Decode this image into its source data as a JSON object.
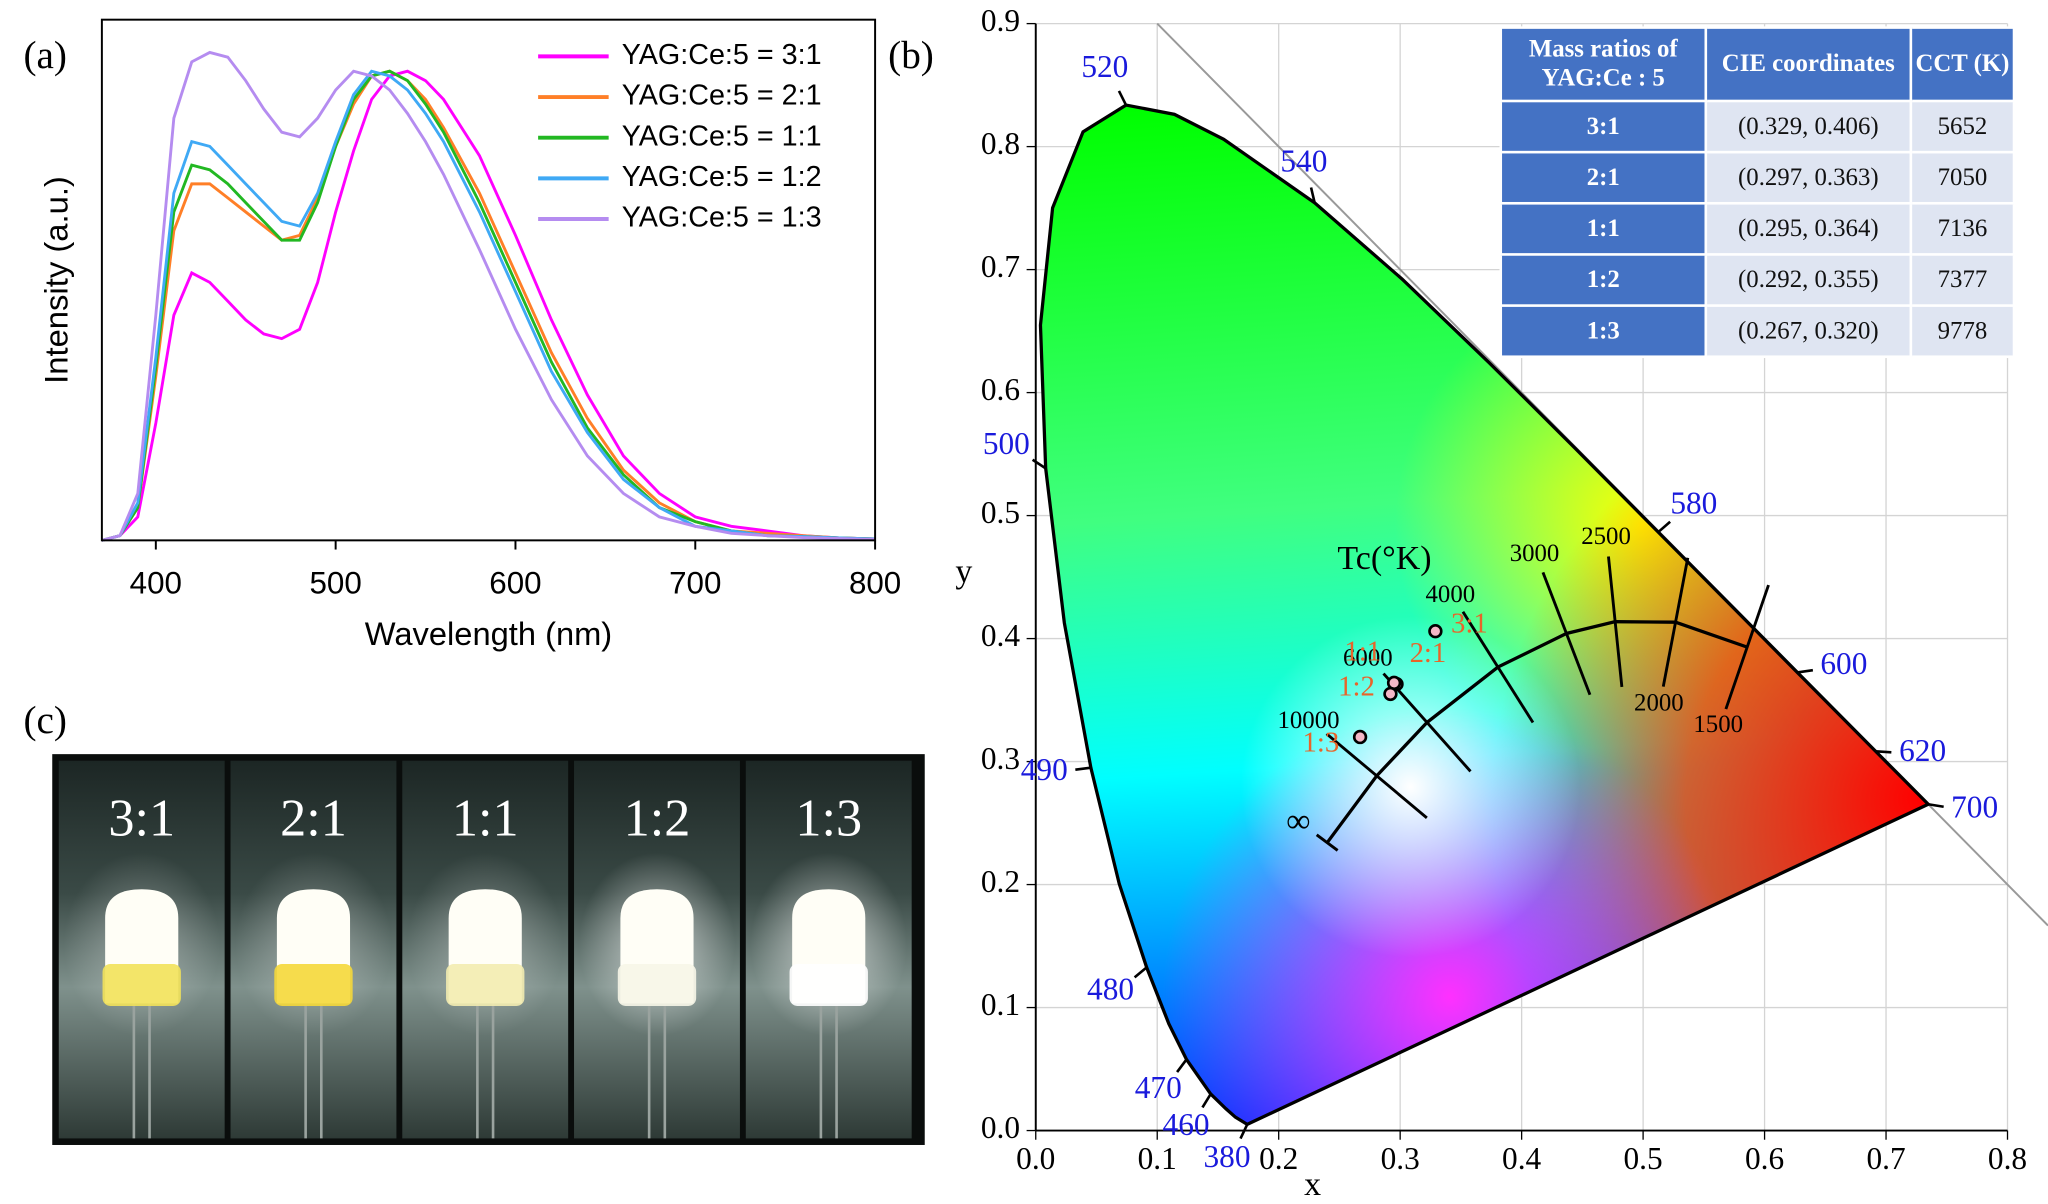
{
  "panel_labels": [
    "(a)",
    "(b)",
    "(c)"
  ],
  "chart_data": [
    {
      "type": "line",
      "xlabel": "Wavelength (nm)",
      "ylabel": "Intensity (a.u.)",
      "xlim": [
        370,
        800
      ],
      "xticks": [
        400,
        500,
        600,
        700,
        800
      ],
      "ylim": [
        0,
        1.11
      ],
      "legend": "upper right",
      "x": [
        370,
        380,
        390,
        400,
        410,
        420,
        430,
        440,
        450,
        460,
        470,
        480,
        490,
        500,
        510,
        520,
        530,
        540,
        550,
        560,
        580,
        600,
        620,
        640,
        660,
        680,
        700,
        720,
        740,
        760,
        780,
        800
      ],
      "series": [
        {
          "name": "YAG:Ce:5 = 3:1",
          "color": "#ff00ff",
          "values": [
            0,
            0.01,
            0.05,
            0.25,
            0.48,
            0.57,
            0.55,
            0.51,
            0.47,
            0.44,
            0.43,
            0.45,
            0.55,
            0.7,
            0.83,
            0.94,
            0.99,
            1.0,
            0.98,
            0.94,
            0.82,
            0.65,
            0.47,
            0.31,
            0.18,
            0.1,
            0.05,
            0.03,
            0.02,
            0.01,
            0.005,
            0.003
          ]
        },
        {
          "name": "YAG:Ce:5 = 2:1",
          "color": "#ff7f27",
          "values": [
            0,
            0.01,
            0.07,
            0.35,
            0.66,
            0.76,
            0.76,
            0.73,
            0.7,
            0.67,
            0.64,
            0.65,
            0.73,
            0.84,
            0.93,
            0.99,
            1.0,
            0.98,
            0.94,
            0.88,
            0.74,
            0.57,
            0.4,
            0.26,
            0.15,
            0.08,
            0.04,
            0.02,
            0.015,
            0.01,
            0.005,
            0.003
          ]
        },
        {
          "name": "YAG:Ce:5 = 1:1",
          "color": "#22b822",
          "values": [
            0,
            0.01,
            0.07,
            0.37,
            0.7,
            0.8,
            0.79,
            0.76,
            0.72,
            0.68,
            0.64,
            0.64,
            0.72,
            0.84,
            0.94,
            0.99,
            1.0,
            0.98,
            0.93,
            0.87,
            0.72,
            0.55,
            0.38,
            0.24,
            0.14,
            0.07,
            0.04,
            0.02,
            0.01,
            0.008,
            0.005,
            0.003
          ]
        },
        {
          "name": "YAG:Ce:5 = 1:2",
          "color": "#3fa9f5",
          "values": [
            0,
            0.01,
            0.08,
            0.39,
            0.74,
            0.85,
            0.84,
            0.8,
            0.76,
            0.72,
            0.68,
            0.67,
            0.74,
            0.85,
            0.95,
            1.0,
            0.99,
            0.96,
            0.91,
            0.85,
            0.7,
            0.53,
            0.36,
            0.23,
            0.13,
            0.07,
            0.03,
            0.02,
            0.01,
            0.008,
            0.005,
            0.003
          ]
        },
        {
          "name": "YAG:Ce:5 = 1:3",
          "color": "#b58cf0",
          "values": [
            0,
            0.01,
            0.1,
            0.48,
            0.9,
            1.02,
            1.04,
            1.03,
            0.98,
            0.92,
            0.87,
            0.86,
            0.9,
            0.96,
            1.0,
            0.99,
            0.96,
            0.91,
            0.85,
            0.78,
            0.62,
            0.45,
            0.3,
            0.18,
            0.1,
            0.05,
            0.03,
            0.015,
            0.01,
            0.006,
            0.004,
            0.002
          ]
        }
      ]
    },
    {
      "type": "scatter",
      "xlabel": "x",
      "ylabel": "y",
      "xlim": [
        0,
        0.8
      ],
      "xticks": [
        {
          "value": 0,
          "label": "0.0"
        },
        0.1,
        0.2,
        0.3,
        0.4,
        0.5,
        0.6,
        0.7,
        0.8
      ],
      "ylim": [
        0,
        0.9
      ],
      "yticks": [
        {
          "value": 0,
          "label": "0.0"
        },
        0.1,
        0.2,
        0.3,
        0.4,
        0.5,
        0.6,
        0.7,
        0.8,
        0.9
      ],
      "grid": true,
      "x": [
        0.329,
        0.297,
        0.295,
        0.292,
        0.267
      ],
      "y": [
        0.406,
        0.363,
        0.364,
        0.355,
        0.32
      ],
      "labels": [
        "3:1",
        "2:1",
        "1:1",
        "1:2",
        "1:3"
      ],
      "color": "#e8642a",
      "spectral_locus": {
        "labels": [
          "380",
          null,
          null,
          "460",
          "470",
          null,
          "480",
          null,
          "490",
          null,
          "500",
          null,
          null,
          null,
          "520",
          null,
          null,
          "540",
          null,
          null,
          null,
          "580",
          null,
          "600",
          "620",
          "700"
        ],
        "x": [
          0.1741,
          0.1644,
          0.1566,
          0.144,
          0.1241,
          0.1096,
          0.0913,
          0.0687,
          0.0454,
          0.0235,
          0.0082,
          0.0039,
          0.0139,
          0.0389,
          0.0743,
          0.1142,
          0.1547,
          0.2296,
          0.3016,
          0.3731,
          0.4441,
          0.5125,
          0.5752,
          0.627,
          0.6915,
          0.7347
        ],
        "y": [
          0.005,
          0.0109,
          0.0177,
          0.0297,
          0.0578,
          0.0868,
          0.1327,
          0.2007,
          0.295,
          0.4127,
          0.5384,
          0.6548,
          0.7502,
          0.812,
          0.8338,
          0.8262,
          0.8059,
          0.7543,
          0.6923,
          0.6245,
          0.5547,
          0.4866,
          0.4242,
          0.3725,
          0.3083,
          0.2653
        ]
      },
      "planckian": {
        "title": "Tc(°K)",
        "labels": [
          "∞",
          "10000",
          "6000",
          "4000",
          "3000",
          "2500",
          "2000",
          "1500"
        ],
        "x": [
          0.2399,
          0.2807,
          0.3221,
          0.3805,
          0.4369,
          0.477,
          0.5267,
          0.5857
        ],
        "y": [
          0.2341,
          0.2884,
          0.3318,
          0.3768,
          0.4041,
          0.4137,
          0.4133,
          0.3931
        ]
      },
      "table": {
        "header": [
          "Mass ratios of YAG:Ce : 5",
          "CIE coordinates",
          "CCT (K)"
        ],
        "rows": [
          [
            "3:1",
            "(0.329, 0.406)",
            "5652"
          ],
          [
            "2:1",
            "(0.297, 0.363)",
            "7050"
          ],
          [
            "1:1",
            "(0.295, 0.364)",
            "7136"
          ],
          [
            "1:2",
            "(0.292, 0.355)",
            "7377"
          ],
          [
            "1:3",
            "(0.267, 0.320)",
            "9778"
          ]
        ]
      }
    }
  ],
  "photo": {
    "labels": [
      "3:1",
      "2:1",
      "1:1",
      "1:2",
      "1:3"
    ]
  }
}
